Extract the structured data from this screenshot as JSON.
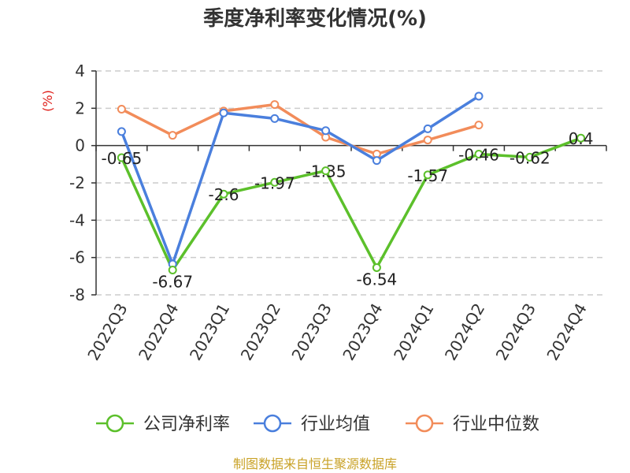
{
  "title": "季度净利率变化情况(%)",
  "source": "制图数据来自恒生聚源数据库",
  "chart_data": {
    "type": "line",
    "title": "季度净利率变化情况(%)",
    "ylabel": "(%)",
    "xlabel": "",
    "categories": [
      "2022Q3",
      "2022Q4",
      "2023Q1",
      "2023Q2",
      "2023Q3",
      "2023Q4",
      "2024Q1",
      "2024Q2",
      "2024Q3",
      "2024Q4"
    ],
    "ylim": [
      -8,
      4
    ],
    "yticks": [
      4,
      2,
      0,
      -2,
      -4,
      -6,
      -8
    ],
    "grid": true,
    "legend_position": "bottom",
    "series": [
      {
        "name": "公司净利率",
        "color": "#5cc02b",
        "values": [
          -0.65,
          -6.67,
          -2.6,
          -1.97,
          -1.35,
          -6.54,
          -1.57,
          -0.46,
          -0.62,
          0.4
        ],
        "labels": [
          "-0.65",
          "-6.67",
          "-2.6",
          "-1.97",
          "-1.35",
          "-6.54",
          "-1.57",
          "-0.46",
          "-0.62",
          "0.4"
        ]
      },
      {
        "name": "行业均值",
        "color": "#4a7fdd",
        "values": [
          0.75,
          -6.35,
          1.75,
          1.45,
          0.8,
          -0.8,
          0.9,
          2.65,
          null,
          null
        ]
      },
      {
        "name": "行业中位数",
        "color": "#f28c5a",
        "values": [
          1.95,
          0.55,
          1.85,
          2.2,
          0.45,
          -0.45,
          0.3,
          1.1,
          null,
          null
        ]
      }
    ]
  }
}
